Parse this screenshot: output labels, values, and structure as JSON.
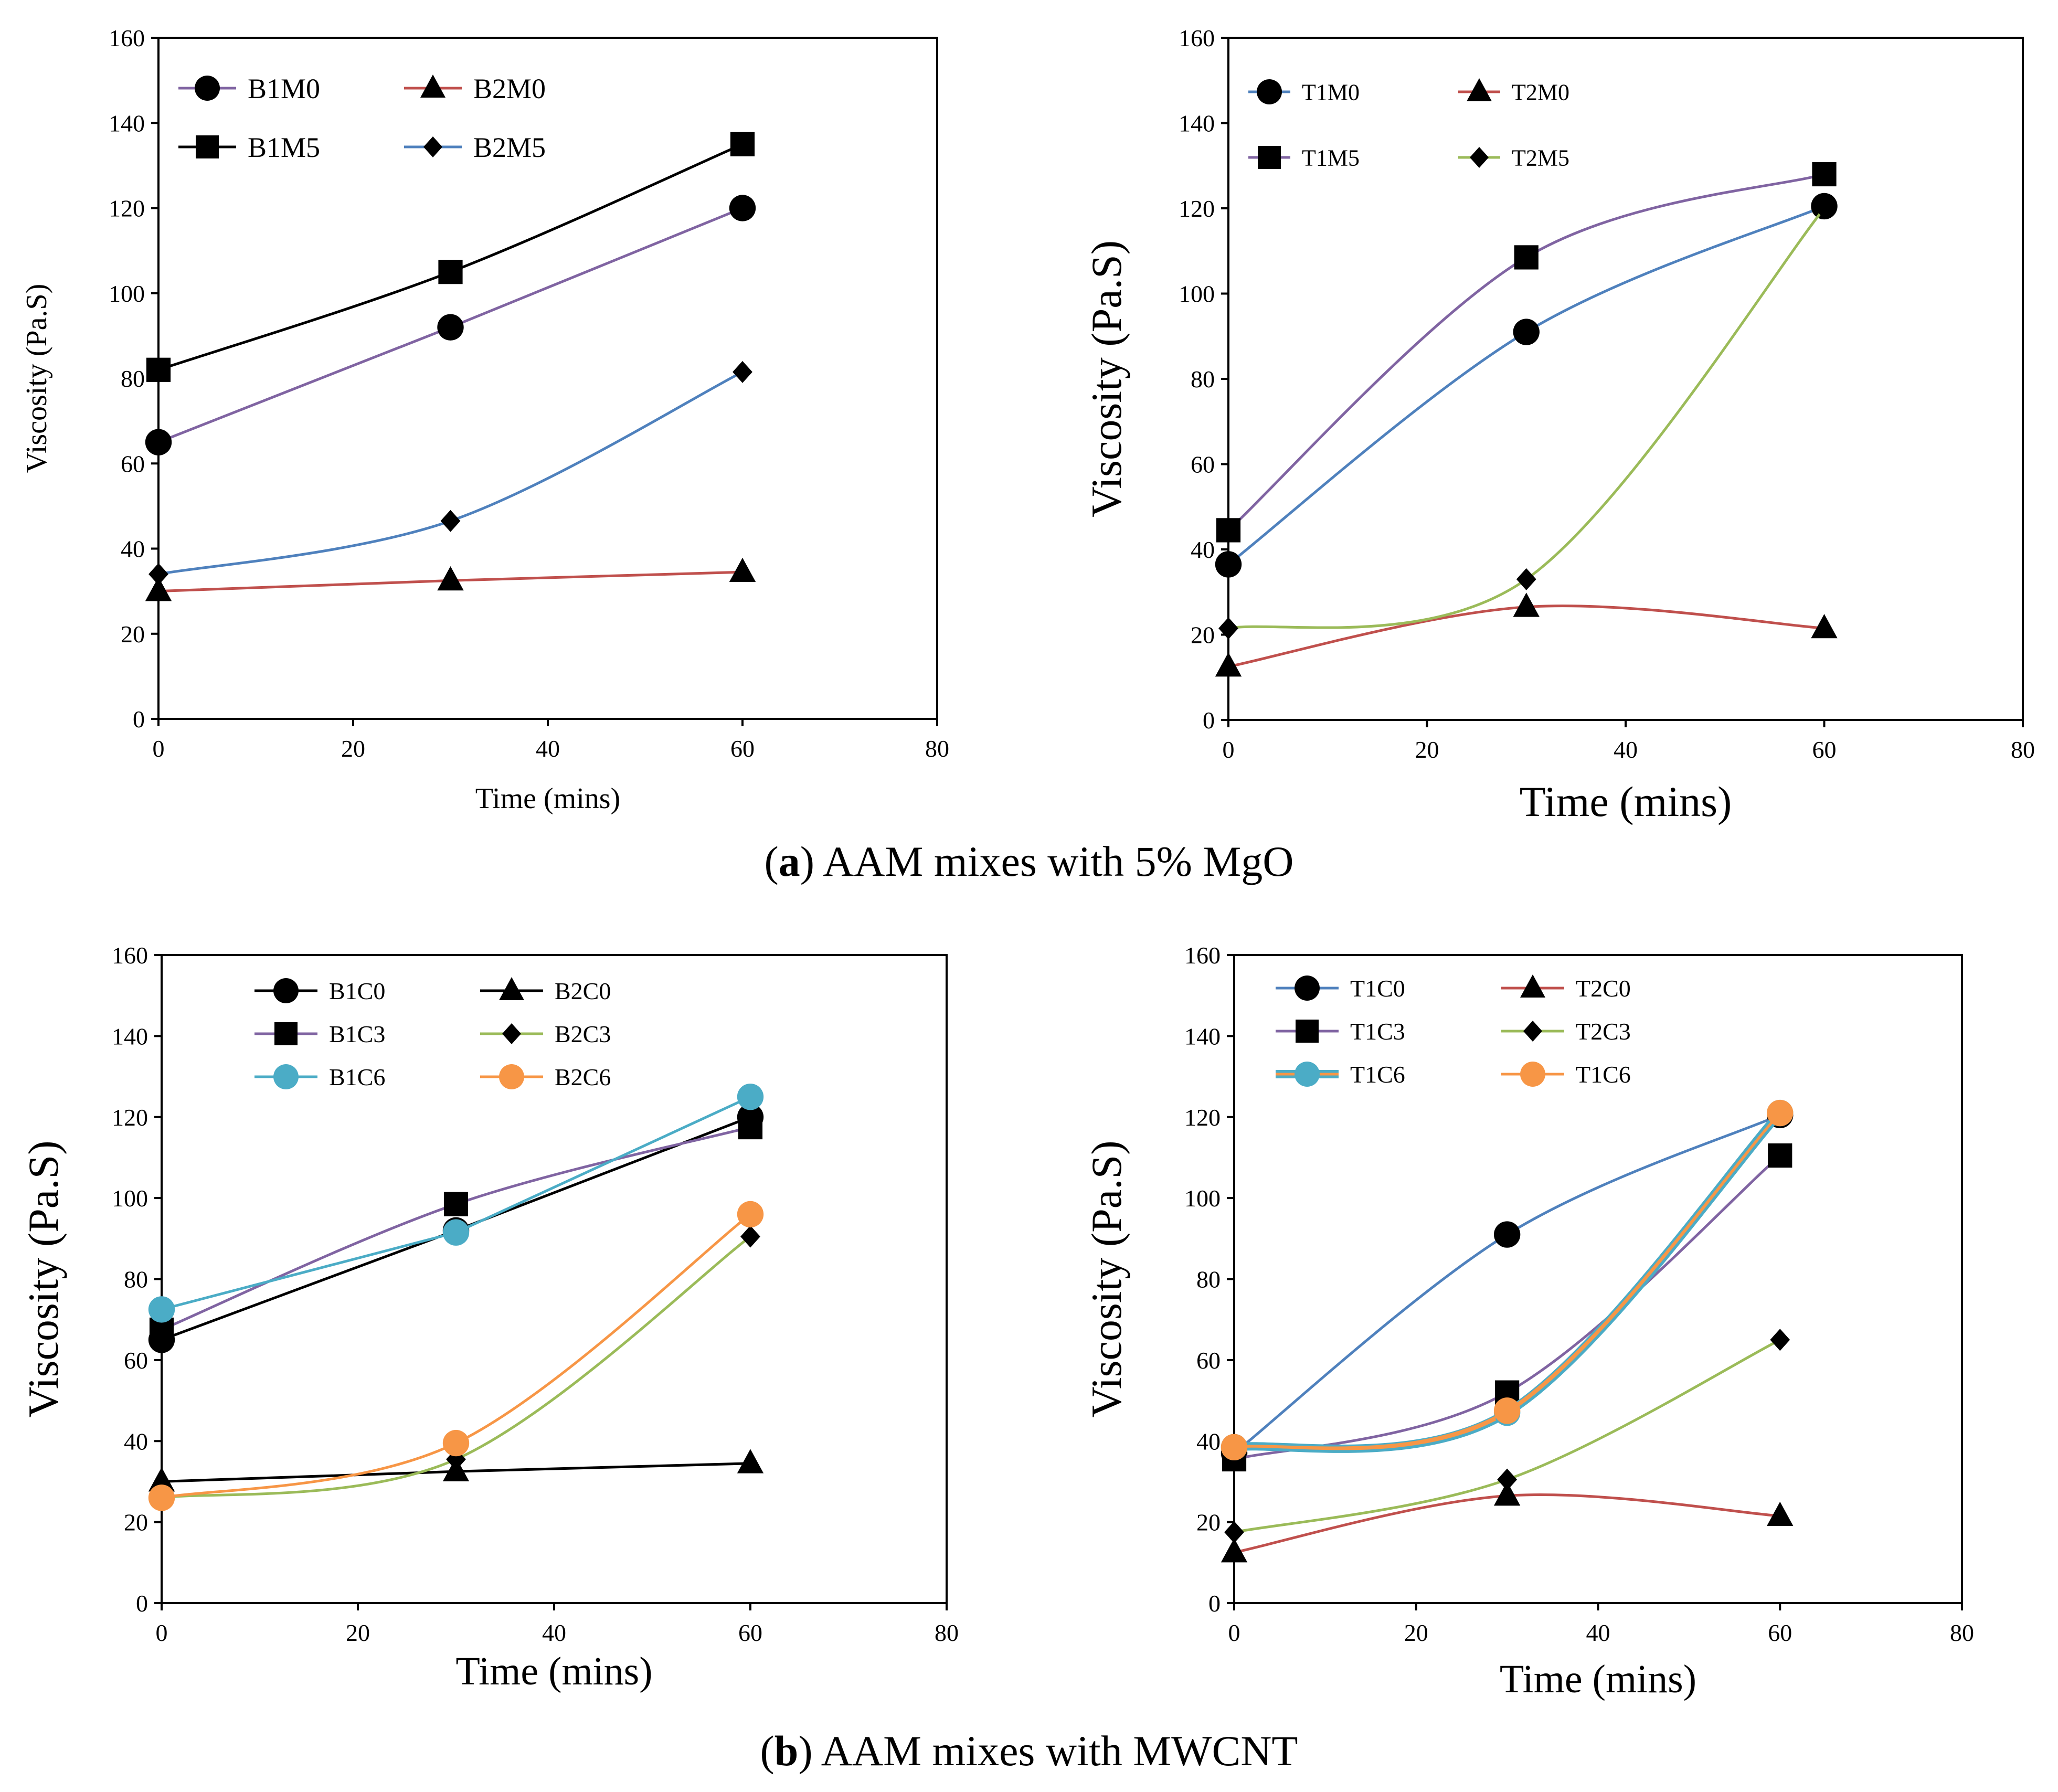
{
  "captions": {
    "a_letter": "a",
    "a_text": "AAM mixes with 5% MgO",
    "b_letter": "b",
    "b_text": "AAM mixes with MWCNT"
  },
  "chart_data": [
    {
      "id": "top-left",
      "type": "line",
      "xlabel": "Time (mins)",
      "ylabel": "Viscosity (Pa.S)",
      "xlim": [
        0,
        80
      ],
      "ylim": [
        0,
        160
      ],
      "xticks": [
        0,
        20,
        40,
        60,
        80
      ],
      "yticks": [
        0,
        20,
        40,
        60,
        80,
        100,
        120,
        140,
        160
      ],
      "grid": false,
      "legend_position": "top-left",
      "legend_columns": 2,
      "series": [
        {
          "name": "B1M0",
          "color": "#8064A2",
          "marker": "circle",
          "x": [
            0,
            30,
            60
          ],
          "y": [
            65,
            92,
            120
          ]
        },
        {
          "name": "B2M0",
          "color": "#C0504D",
          "marker": "triangle",
          "x": [
            0,
            30,
            60
          ],
          "y": [
            30,
            32.5,
            34.5
          ]
        },
        {
          "name": "B1M5",
          "color": "#000000",
          "marker": "square",
          "x": [
            0,
            30,
            60
          ],
          "y": [
            82,
            105,
            135
          ]
        },
        {
          "name": "B2M5",
          "color": "#4F81BD",
          "marker": "diamond",
          "x": [
            0,
            30,
            60
          ],
          "y": [
            34,
            46.5,
            81.5
          ]
        }
      ]
    },
    {
      "id": "top-right",
      "type": "line",
      "xlabel": "Time (mins)",
      "ylabel": "Viscosity (Pa.S)",
      "xlim": [
        0,
        80
      ],
      "ylim": [
        0,
        160
      ],
      "xticks": [
        0,
        20,
        40,
        60,
        80
      ],
      "yticks": [
        0,
        20,
        40,
        60,
        80,
        100,
        120,
        140,
        160
      ],
      "grid": false,
      "legend_position": "top-left",
      "legend_columns": 2,
      "series": [
        {
          "name": "T1M0",
          "color": "#4F81BD",
          "marker": "circle",
          "x": [
            0,
            30,
            60
          ],
          "y": [
            36.5,
            91,
            120.5
          ]
        },
        {
          "name": "T2M0",
          "color": "#C0504D",
          "marker": "triangle",
          "x": [
            0,
            30,
            60
          ],
          "y": [
            12.5,
            26.5,
            21.5
          ]
        },
        {
          "name": "T1M5",
          "color": "#8064A2",
          "marker": "square",
          "x": [
            0,
            30,
            60
          ],
          "y": [
            44.5,
            108.5,
            128
          ]
        },
        {
          "name": "T2M5",
          "color": "#9BBB59",
          "marker": "diamond",
          "x": [
            0,
            30,
            60
          ],
          "y": [
            21.5,
            33,
            120
          ]
        }
      ]
    },
    {
      "id": "bottom-left",
      "type": "line",
      "xlabel": "Time (mins)",
      "ylabel": "Viscosity (Pa.S)",
      "xlim": [
        0,
        80
      ],
      "ylim": [
        0,
        160
      ],
      "xticks": [
        0,
        20,
        40,
        60,
        80
      ],
      "yticks": [
        0,
        20,
        40,
        60,
        80,
        100,
        120,
        140,
        160
      ],
      "grid": false,
      "legend_position": "top",
      "legend_columns": 2,
      "series": [
        {
          "name": "B1C0",
          "color": "#000000",
          "marker": "circle",
          "x": [
            0,
            30,
            60
          ],
          "y": [
            65,
            92,
            120
          ]
        },
        {
          "name": "B2C0",
          "color": "#000000",
          "marker": "triangle",
          "x": [
            0,
            30,
            60
          ],
          "y": [
            30,
            32.5,
            34.5
          ]
        },
        {
          "name": "B1C3",
          "color": "#8064A2",
          "marker": "square",
          "x": [
            0,
            30,
            60
          ],
          "y": [
            67.5,
            98.5,
            117.5
          ]
        },
        {
          "name": "B2C3",
          "color": "#9BBB59",
          "marker": "diamond",
          "x": [
            0,
            30,
            60
          ],
          "y": [
            26,
            35.5,
            90.5
          ]
        },
        {
          "name": "B1C6",
          "color": "#4BACC6",
          "marker": "circle",
          "x": [
            0,
            30,
            60
          ],
          "y": [
            72.5,
            91.5,
            125
          ]
        },
        {
          "name": "B2C6",
          "color": "#F79646",
          "marker": "circle",
          "x": [
            0,
            30,
            60
          ],
          "y": [
            26,
            39.5,
            96
          ]
        }
      ]
    },
    {
      "id": "bottom-right",
      "type": "line",
      "xlabel": "Time (mins)",
      "ylabel": "Viscosity (Pa.S)",
      "xlim": [
        0,
        80
      ],
      "ylim": [
        0,
        160
      ],
      "xticks": [
        0,
        20,
        40,
        60,
        80
      ],
      "yticks": [
        0,
        20,
        40,
        60,
        80,
        100,
        120,
        140,
        160
      ],
      "grid": false,
      "legend_position": "top",
      "legend_columns": 2,
      "series": [
        {
          "name": "T1C0",
          "color": "#4F81BD",
          "marker": "circle",
          "x": [
            0,
            30,
            60
          ],
          "y": [
            37,
            91,
            120.5
          ]
        },
        {
          "name": "T2C0",
          "color": "#C0504D",
          "marker": "triangle",
          "x": [
            0,
            30,
            60
          ],
          "y": [
            12.5,
            26.5,
            21.5
          ]
        },
        {
          "name": "T1C3",
          "color": "#8064A2",
          "marker": "square",
          "x": [
            0,
            30,
            60
          ],
          "y": [
            35.5,
            52,
            110.5
          ]
        },
        {
          "name": "T2C3",
          "color": "#9BBB59",
          "marker": "diamond",
          "x": [
            0,
            30,
            60
          ],
          "y": [
            17.5,
            30.5,
            65
          ]
        },
        {
          "name": "T1C6",
          "color": "#4BACC6",
          "marker": "circle",
          "x": [
            0,
            30,
            60
          ],
          "y": [
            38.5,
            47,
            121
          ],
          "thick": true
        },
        {
          "name": "T1C6",
          "color": "#F79646",
          "marker": "circle",
          "x": [
            0,
            30,
            60
          ],
          "y": [
            38.5,
            47.5,
            121
          ]
        }
      ]
    }
  ]
}
